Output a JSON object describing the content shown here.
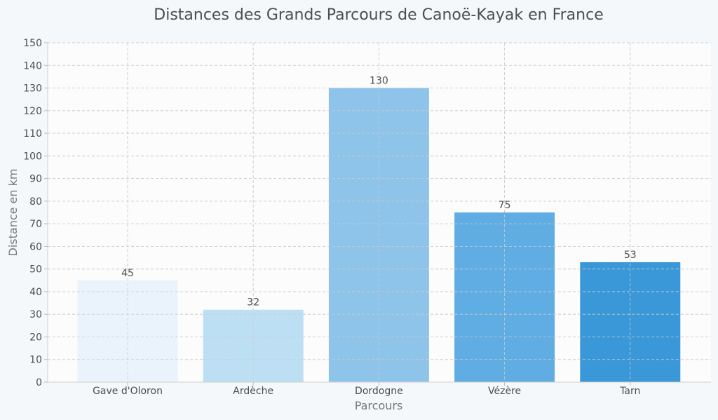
{
  "chart_data": {
    "type": "bar",
    "title": "Distances des Grands Parcours de Canoë-Kayak en France",
    "xlabel": "Parcours",
    "ylabel": "Distance en km",
    "categories": [
      "Gave d'Oloron",
      "Ardèche",
      "Dordogne",
      "Vézère",
      "Tarn"
    ],
    "values": [
      45,
      32,
      130,
      75,
      53
    ],
    "data_labels": [
      "45",
      "32",
      "130",
      "75",
      "53"
    ],
    "colors": [
      "#eaf3fc",
      "#bddff3",
      "#8fc4ea",
      "#60ade3",
      "#3a98d9"
    ],
    "ylim": [
      0,
      150
    ],
    "yticks": [
      0,
      10,
      20,
      30,
      40,
      50,
      60,
      70,
      80,
      90,
      100,
      110,
      120,
      130,
      140,
      150
    ],
    "grid": true
  }
}
